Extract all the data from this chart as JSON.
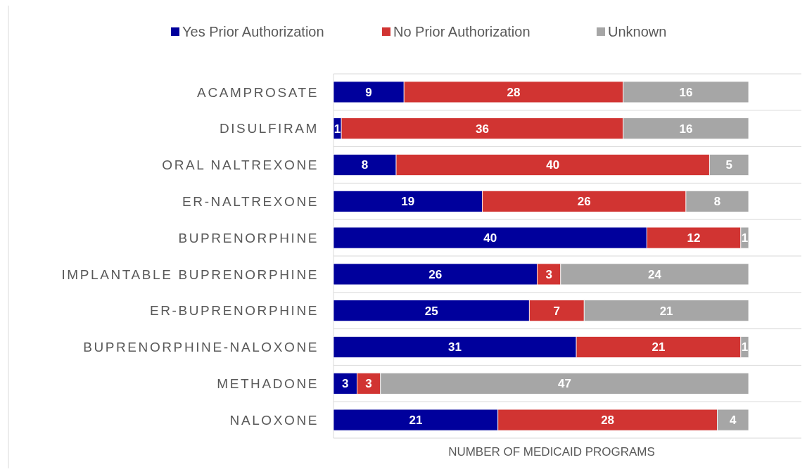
{
  "chart_data": {
    "type": "bar",
    "orientation": "horizontal",
    "stacked": true,
    "data_labels": true,
    "legend": "top",
    "grid": "y",
    "xlabel": "NUMBER OF MEDICAID PROGRAMS",
    "categories": [
      "ACAMPROSATE",
      "DISULFIRAM",
      "ORAL NALTREXONE",
      "ER-NALTREXONE",
      "BUPRENORPHINE",
      "IMPLANTABLE BUPRENORPHINE",
      "ER-BUPRENORPHINE",
      "BUPRENORPHINE-NALOXONE",
      "METHADONE",
      "NALOXONE"
    ],
    "series": [
      {
        "name": "Yes Prior Authorization",
        "color": "#00009c",
        "values": [
          9,
          1,
          8,
          19,
          40,
          26,
          25,
          31,
          3,
          21
        ]
      },
      {
        "name": "No Prior Authorization",
        "color": "#d13432",
        "values": [
          28,
          36,
          40,
          26,
          12,
          3,
          7,
          21,
          3,
          28
        ]
      },
      {
        "name": "Unknown",
        "color": "#a6a6a6",
        "values": [
          16,
          16,
          5,
          8,
          1,
          24,
          21,
          1,
          47,
          4
        ]
      }
    ]
  }
}
